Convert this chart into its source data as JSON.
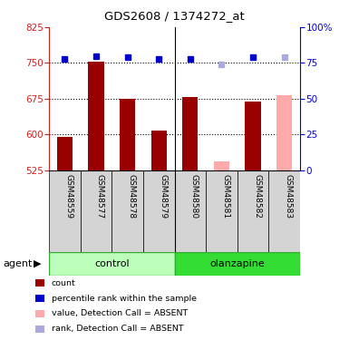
{
  "title": "GDS2608 / 1374272_at",
  "samples": [
    "GSM48559",
    "GSM48577",
    "GSM48578",
    "GSM48579",
    "GSM48580",
    "GSM48581",
    "GSM48582",
    "GSM48583"
  ],
  "bar_values": [
    595,
    752,
    675,
    608,
    678,
    543,
    668,
    682
  ],
  "bar_absent": [
    false,
    false,
    false,
    false,
    false,
    true,
    false,
    true
  ],
  "rank_values": [
    78,
    80,
    79,
    78,
    78,
    74,
    79,
    79
  ],
  "rank_absent": [
    false,
    false,
    false,
    false,
    false,
    true,
    false,
    true
  ],
  "ylim_left": [
    525,
    825
  ],
  "ylim_right": [
    0,
    100
  ],
  "yticks_left": [
    525,
    600,
    675,
    750,
    825
  ],
  "yticks_right": [
    0,
    25,
    50,
    75,
    100
  ],
  "ytick_labels_right": [
    "0",
    "25",
    "50",
    "75",
    "100%"
  ],
  "color_bar_present": "#990000",
  "color_bar_absent": "#ffaaaa",
  "color_rank_present": "#0000cc",
  "color_rank_absent": "#aaaadd",
  "group_labels": [
    "control",
    "olanzapine"
  ],
  "group_color_light": "#bbffbb",
  "group_color_dark": "#33dd33",
  "agent_label": "agent",
  "gridlines": [
    600,
    675,
    750
  ],
  "legend_items": [
    {
      "label": "count",
      "color": "#990000"
    },
    {
      "label": "percentile rank within the sample",
      "color": "#0000cc"
    },
    {
      "label": "value, Detection Call = ABSENT",
      "color": "#ffaaaa"
    },
    {
      "label": "rank, Detection Call = ABSENT",
      "color": "#aaaadd"
    }
  ]
}
